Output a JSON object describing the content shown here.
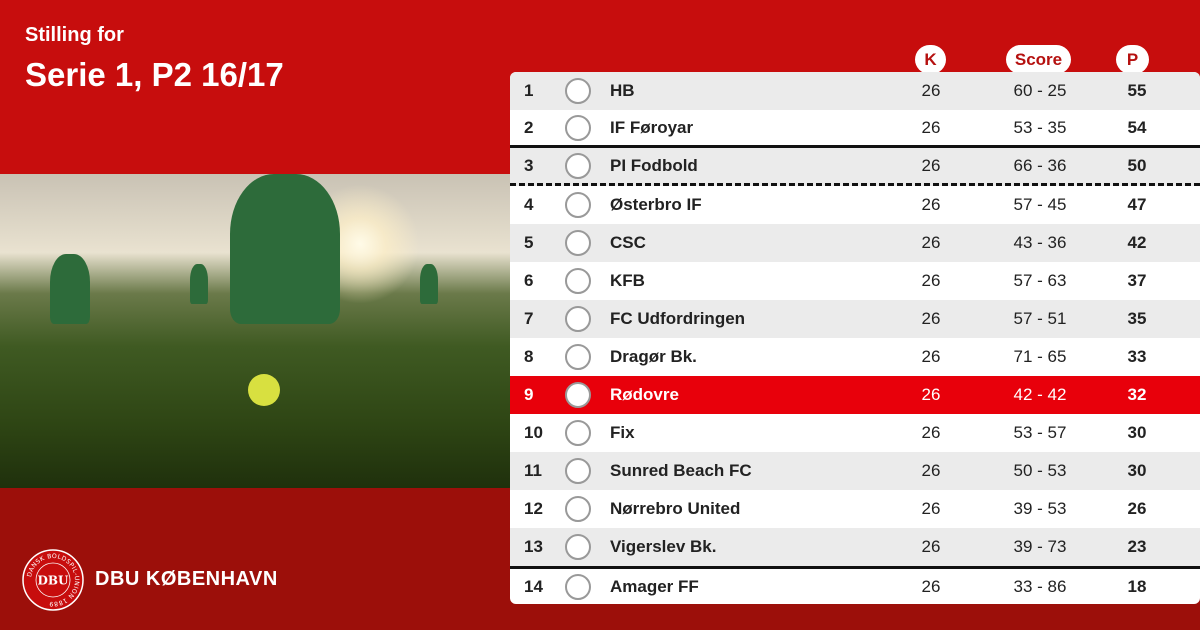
{
  "header": {
    "subtitle": "Stilling for",
    "title": "Serie 1, P2 16/17"
  },
  "columns": {
    "k": "K",
    "score": "Score",
    "p": "P"
  },
  "colors": {
    "primary": "#c70d0d",
    "dark": "#9c0f0a",
    "highlight": "#e8000b"
  },
  "rows": [
    {
      "pos": "1",
      "team": "HB",
      "k": "26",
      "score": "60 - 25",
      "p": "55",
      "logo": "hb-crest"
    },
    {
      "pos": "2",
      "team": "IF Føroyar",
      "k": "26",
      "score": "53 - 35",
      "p": "54",
      "logo": "if-foroyar-crest"
    },
    {
      "pos": "3",
      "team": "PI Fodbold",
      "k": "26",
      "score": "66 - 36",
      "p": "50",
      "logo": "pi-crest"
    },
    {
      "pos": "4",
      "team": "Østerbro IF",
      "k": "26",
      "score": "57 - 45",
      "p": "47",
      "logo": "osterbro-crest"
    },
    {
      "pos": "5",
      "team": "CSC",
      "k": "26",
      "score": "43 - 36",
      "p": "42",
      "logo": "csc-crest"
    },
    {
      "pos": "6",
      "team": "KFB",
      "k": "26",
      "score": "57 - 63",
      "p": "37",
      "logo": "kfb-crest"
    },
    {
      "pos": "7",
      "team": "FC Udfordringen",
      "k": "26",
      "score": "57 - 51",
      "p": "35",
      "logo": "udfordringen-crest"
    },
    {
      "pos": "8",
      "team": "Dragør Bk.",
      "k": "26",
      "score": "71 - 65",
      "p": "33",
      "logo": "dragor-crest"
    },
    {
      "pos": "9",
      "team": "Rødovre",
      "k": "26",
      "score": "42 - 42",
      "p": "32",
      "logo": "rodovre-crest",
      "highlight": true
    },
    {
      "pos": "10",
      "team": "Fix",
      "k": "26",
      "score": "53 - 57",
      "p": "30",
      "logo": "fix-crest"
    },
    {
      "pos": "11",
      "team": "Sunred Beach FC",
      "k": "26",
      "score": "50 - 53",
      "p": "30",
      "logo": "sunred-crest"
    },
    {
      "pos": "12",
      "team": "Nørrebro United",
      "k": "26",
      "score": "39 - 53",
      "p": "26",
      "logo": "norrebro-crest"
    },
    {
      "pos": "13",
      "team": "Vigerslev Bk.",
      "k": "26",
      "score": "39 - 73",
      "p": "23",
      "logo": "vigerslev-crest"
    },
    {
      "pos": "14",
      "team": "Amager FF",
      "k": "26",
      "score": "33 - 86",
      "p": "18",
      "logo": "amager-crest"
    }
  ],
  "footer": {
    "brand": "DBU KØBENHAVN",
    "crest_text": "DBU",
    "crest_ring": "DANSK BOLDSPIL-UNION 1889"
  }
}
